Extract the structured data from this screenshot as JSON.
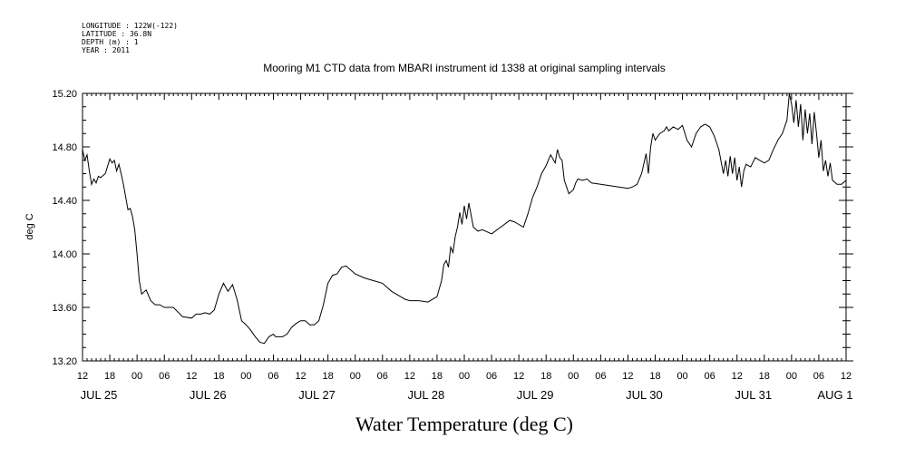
{
  "header": {
    "meta_lines": [
      "LONGITUDE : 122W(-122)",
      "LATITUDE : 36.8N",
      "DEPTH (m) : 1",
      "YEAR : 2011"
    ]
  },
  "chart_data": {
    "type": "line",
    "title": "Mooring M1 CTD data from MBARI instrument id 1338 at original sampling intervals",
    "xlabel": "Water Temperature (deg C)",
    "ylabel": "deg C",
    "x_units": "hours since JUL 25 12:00, 2011",
    "xlim": [
      0,
      168
    ],
    "ylim": [
      13.2,
      15.2
    ],
    "yticks": [
      13.2,
      13.6,
      14.0,
      14.4,
      14.8,
      15.2
    ],
    "ytick_labels": [
      "13.20",
      "13.60",
      "14.00",
      "14.40",
      "14.80",
      "15.20"
    ],
    "xtick_hours": [
      0,
      6,
      12,
      18,
      24,
      30,
      36,
      42,
      48,
      54,
      60,
      66,
      72,
      78,
      84,
      90,
      96,
      102,
      108,
      114,
      120,
      126,
      132,
      138,
      144,
      150,
      156,
      162,
      168
    ],
    "xtick_labels": [
      "12",
      "18",
      "00",
      "06",
      "12",
      "18",
      "00",
      "06",
      "12",
      "18",
      "00",
      "06",
      "12",
      "18",
      "00",
      "06",
      "12",
      "18",
      "00",
      "06",
      "12",
      "18",
      "00",
      "06",
      "12",
      "18",
      "00",
      "06",
      "12"
    ],
    "date_labels": [
      {
        "label": "JUL 25",
        "hour": 0
      },
      {
        "label": "JUL 26",
        "hour": 24
      },
      {
        "label": "JUL 27",
        "hour": 48
      },
      {
        "label": "JUL 28",
        "hour": 72
      },
      {
        "label": "JUL 29",
        "hour": 96
      },
      {
        "label": "JUL 30",
        "hour": 120
      },
      {
        "label": "JUL 31",
        "hour": 144
      },
      {
        "label": "AUG 1",
        "hour": 162
      }
    ],
    "grid": false,
    "series": [
      {
        "x": [
          0,
          0.5,
          1,
          1.5,
          2,
          2.5,
          3,
          3.5,
          4,
          5,
          6,
          6.5,
          7,
          7.5,
          8,
          8.5,
          9,
          10,
          10.5,
          11,
          11.5,
          12,
          12.5,
          13,
          14,
          15,
          16,
          17,
          18,
          20,
          22,
          24,
          25,
          26,
          27,
          28,
          29,
          30,
          31,
          32,
          33,
          34,
          35,
          36,
          37,
          38,
          39,
          40,
          41,
          42,
          42.5,
          43,
          44,
          45,
          46,
          47,
          48,
          49,
          50,
          51,
          52,
          53,
          54,
          55,
          56,
          57,
          58,
          59,
          60,
          62,
          64,
          66,
          68,
          70,
          71,
          72,
          73,
          74,
          76,
          78,
          79,
          79.5,
          80,
          80.5,
          81,
          81.5,
          82,
          82.5,
          83,
          83.5,
          84,
          84.5,
          85,
          86,
          87,
          88,
          90,
          92,
          94,
          95,
          96,
          97,
          98,
          99,
          100,
          101,
          102,
          103,
          104,
          104.5,
          105,
          105.5,
          106,
          106.5,
          107,
          108,
          108.5,
          109,
          110,
          111,
          112,
          114,
          116,
          118,
          120,
          121,
          122,
          123,
          124,
          124.5,
          125,
          125.5,
          126,
          127,
          128,
          128.5,
          129,
          130,
          131,
          132,
          133,
          134,
          135,
          136,
          137,
          138,
          139,
          140,
          141,
          141.5,
          142,
          142.5,
          143,
          143.5,
          144,
          144.5,
          145,
          145.5,
          146,
          147,
          148,
          149,
          150,
          151,
          152,
          153,
          154,
          155,
          155.5,
          156,
          156.5,
          157,
          157.5,
          158,
          158.5,
          159,
          159.5,
          160,
          160.5,
          161,
          161.5,
          162,
          162.5,
          163,
          163.5,
          164,
          164.5,
          165,
          166,
          167,
          168
        ],
        "y": [
          14.78,
          14.7,
          14.74,
          14.62,
          14.52,
          14.56,
          14.53,
          14.58,
          14.57,
          14.6,
          14.71,
          14.68,
          14.7,
          14.62,
          14.67,
          14.6,
          14.52,
          14.33,
          14.34,
          14.28,
          14.18,
          14.0,
          13.8,
          13.7,
          13.73,
          13.65,
          13.62,
          13.62,
          13.6,
          13.6,
          13.53,
          13.52,
          13.55,
          13.55,
          13.56,
          13.55,
          13.58,
          13.7,
          13.78,
          13.72,
          13.77,
          13.66,
          13.5,
          13.47,
          13.43,
          13.38,
          13.34,
          13.33,
          13.38,
          13.4,
          13.38,
          13.38,
          13.38,
          13.4,
          13.45,
          13.48,
          13.5,
          13.5,
          13.47,
          13.47,
          13.5,
          13.62,
          13.78,
          13.84,
          13.85,
          13.9,
          13.91,
          13.88,
          13.85,
          13.82,
          13.8,
          13.78,
          13.72,
          13.68,
          13.66,
          13.65,
          13.65,
          13.65,
          13.64,
          13.68,
          13.8,
          13.92,
          13.95,
          13.9,
          14.05,
          14.01,
          14.13,
          14.2,
          14.31,
          14.22,
          14.36,
          14.26,
          14.38,
          14.2,
          14.17,
          14.18,
          14.15,
          14.2,
          14.25,
          14.24,
          14.22,
          14.2,
          14.3,
          14.42,
          14.5,
          14.6,
          14.66,
          14.74,
          14.68,
          14.78,
          14.72,
          14.7,
          14.55,
          14.5,
          14.45,
          14.48,
          14.53,
          14.56,
          14.55,
          14.56,
          14.53,
          14.52,
          14.51,
          14.5,
          14.49,
          14.5,
          14.52,
          14.6,
          14.75,
          14.6,
          14.8,
          14.9,
          14.85,
          14.9,
          14.92,
          14.95,
          14.92,
          14.95,
          14.93,
          14.96,
          14.85,
          14.8,
          14.9,
          14.95,
          14.97,
          14.95,
          14.88,
          14.78,
          14.6,
          14.7,
          14.58,
          14.73,
          14.6,
          14.72,
          14.55,
          14.65,
          14.5,
          14.62,
          14.67,
          14.65,
          14.72,
          14.7,
          14.68,
          14.7,
          14.78,
          14.85,
          14.9,
          15.0,
          15.2,
          15.12,
          14.98,
          15.15,
          14.95,
          15.12,
          14.85,
          15.08,
          14.9,
          15.05,
          14.82,
          15.06,
          14.9,
          14.72,
          14.85,
          14.62,
          14.7,
          14.58,
          14.68,
          14.55,
          14.52,
          14.52,
          14.55
        ]
      }
    ]
  }
}
